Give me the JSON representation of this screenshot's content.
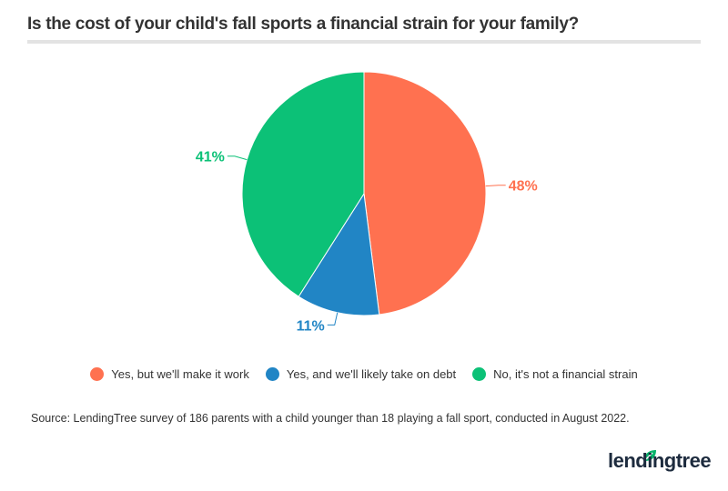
{
  "chart_data": {
    "type": "pie",
    "title": "Is the cost of your child's fall sports a financial strain for your family?",
    "slices": [
      {
        "label": "Yes, but we'll make it work",
        "value": 48,
        "display": "48%",
        "color": "#ff7150"
      },
      {
        "label": "Yes, and we'll likely take on debt",
        "value": 11,
        "display": "11%",
        "color": "#2185c5"
      },
      {
        "label": "No, it's not a financial strain",
        "value": 41,
        "display": "41%",
        "color": "#0cc177"
      }
    ],
    "legend_position": "bottom"
  },
  "source": "Source: LendingTree survey of 186 parents with a child younger than 18 playing a fall sport, conducted in August 2022.",
  "logo": "lendingtree"
}
